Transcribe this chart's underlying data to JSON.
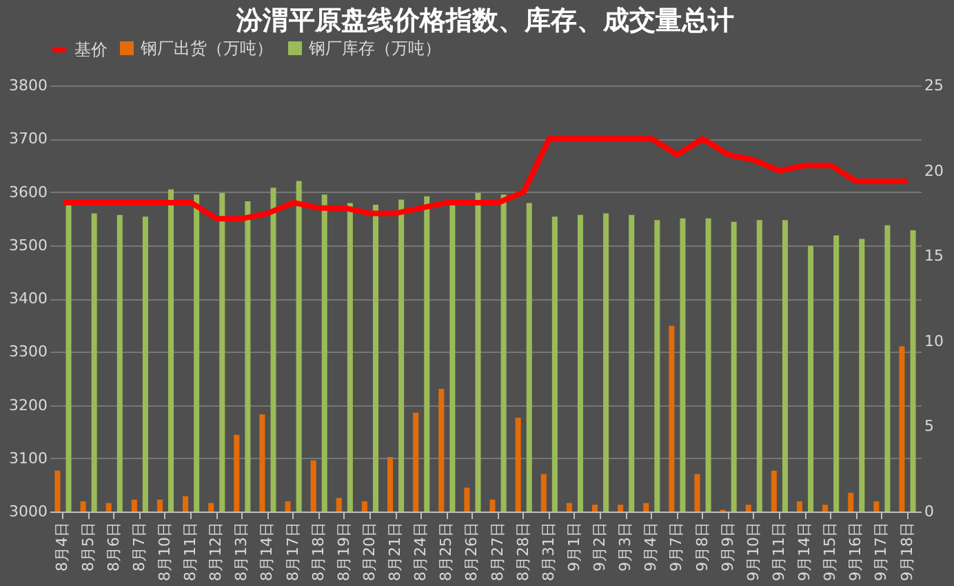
{
  "chart_data": {
    "type": "bar",
    "title": "汾渭平原盘线价格指数、库存、成交量总计",
    "categories": [
      "8月4日",
      "8月5日",
      "8月6日",
      "8月7日",
      "8月10日",
      "8月11日",
      "8月12日",
      "8月13日",
      "8月14日",
      "8月17日",
      "8月18日",
      "8月19日",
      "8月20日",
      "8月21日",
      "8月24日",
      "8月25日",
      "8月26日",
      "8月27日",
      "8月28日",
      "8月31日",
      "9月1日",
      "9月2日",
      "9月3日",
      "9月4日",
      "9月7日",
      "9月8日",
      "9月9日",
      "9月10日",
      "9月11日",
      "9月14日",
      "9月15日",
      "9月16日",
      "9月17日",
      "9月18日"
    ],
    "series": [
      {
        "name": "钢厂出货（万吨）",
        "type": "bar",
        "axis": "y2",
        "color": "#e36c0a",
        "values": [
          2.4,
          0.6,
          0.5,
          0.7,
          0.7,
          0.9,
          0.5,
          4.5,
          5.7,
          0.6,
          3.0,
          0.8,
          0.6,
          3.2,
          5.8,
          7.2,
          1.4,
          0.7,
          5.5,
          2.2,
          0.5,
          0.4,
          0.4,
          0.5,
          10.9,
          2.2,
          0.1,
          0.4,
          2.4,
          0.6,
          0.4,
          1.1,
          0.6,
          9.7
        ]
      },
      {
        "name": "钢厂库存（万吨）",
        "type": "bar",
        "axis": "y2",
        "color": "#9bbb59",
        "values": [
          18.1,
          17.5,
          17.4,
          17.3,
          18.9,
          18.6,
          18.7,
          18.2,
          19.0,
          19.4,
          18.6,
          18.1,
          18.0,
          18.3,
          18.5,
          18.0,
          18.7,
          18.6,
          18.1,
          17.3,
          17.4,
          17.5,
          17.4,
          17.1,
          17.2,
          17.2,
          17.0,
          17.1,
          17.1,
          15.6,
          16.2,
          16.0,
          16.8,
          16.5
        ]
      },
      {
        "name": "基价",
        "type": "line",
        "axis": "y",
        "color": "#ff0000",
        "values": [
          3580,
          3580,
          3580,
          3580,
          3580,
          3580,
          3550,
          3550,
          3560,
          3580,
          3570,
          3570,
          3560,
          3560,
          3570,
          3580,
          3580,
          3580,
          3600,
          3700,
          3700,
          3700,
          3700,
          3700,
          3670,
          3700,
          3670,
          3660,
          3640,
          3650,
          3650,
          3620,
          3620,
          3620
        ]
      }
    ],
    "ylim": [
      3000,
      3800
    ],
    "yticks": [
      3000,
      3100,
      3200,
      3300,
      3400,
      3500,
      3600,
      3700,
      3800
    ],
    "y2lim": [
      0,
      25
    ],
    "y2ticks": [
      0,
      5,
      10,
      15,
      20,
      25
    ],
    "grid": "y",
    "legend": "top"
  }
}
